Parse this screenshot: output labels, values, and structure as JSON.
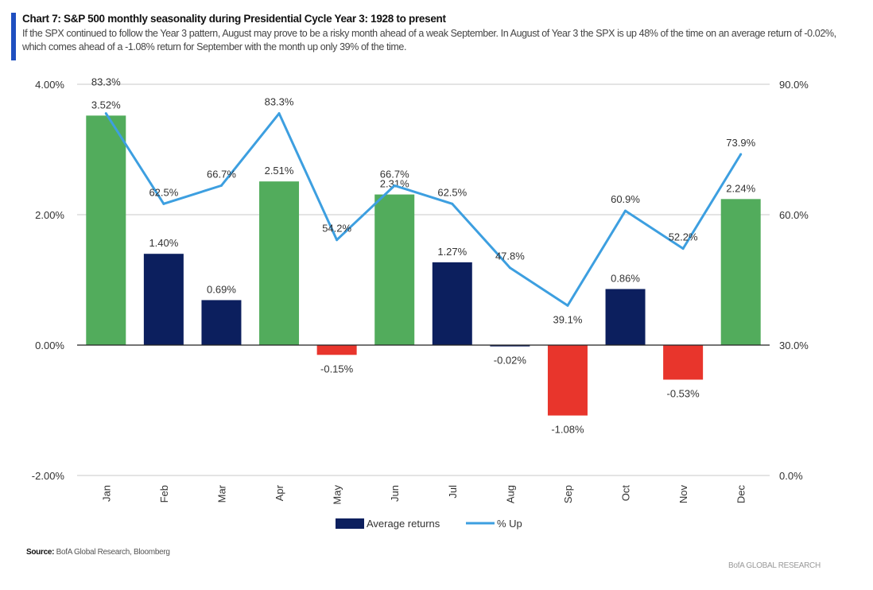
{
  "header": {
    "title": "Chart 7: S&P 500 monthly seasonality during Presidential Cycle Year 3: 1928 to present",
    "subtitle": "If the SPX continued to follow the Year 3 pattern, August may prove to be a risky month ahead of a weak September. In August of Year 3 the SPX is up 48% of the time on an average return of -0.02%, which comes ahead of a -1.08% return for September with the month up only 39% of the time."
  },
  "footer": {
    "source_label": "Source:",
    "source_text": "BofA Global Research, Bloomberg",
    "brand": "BofA GLOBAL RESEARCH"
  },
  "colors": {
    "green": "#52ac5c",
    "navy": "#0c1f5e",
    "red": "#e8352c",
    "line": "#3d9fe0",
    "grid": "#c8c8c8"
  },
  "chart_data": {
    "type": "bar+line",
    "categories": [
      "Jan",
      "Feb",
      "Mar",
      "Apr",
      "May",
      "Jun",
      "Jul",
      "Aug",
      "Sep",
      "Oct",
      "Nov",
      "Dec"
    ],
    "series": [
      {
        "name": "Average returns",
        "type": "bar",
        "axis": "left",
        "values": [
          3.52,
          1.4,
          0.69,
          2.51,
          -0.15,
          2.31,
          1.27,
          -0.02,
          -1.08,
          0.86,
          -0.53,
          2.24
        ],
        "labels": [
          "3.52%",
          "1.40%",
          "0.69%",
          "2.51%",
          "-0.15%",
          "2.31%",
          "1.27%",
          "-0.02%",
          "-1.08%",
          "0.86%",
          "-0.53%",
          "2.24%"
        ],
        "bar_colors": [
          "green",
          "navy",
          "navy",
          "green",
          "red",
          "green",
          "navy",
          "navy",
          "red",
          "navy",
          "red",
          "green"
        ]
      },
      {
        "name": "% Up",
        "type": "line",
        "axis": "right",
        "values": [
          83.3,
          62.5,
          66.7,
          83.3,
          54.2,
          66.7,
          62.5,
          47.8,
          39.1,
          60.9,
          52.2,
          73.9
        ],
        "labels": [
          "83.3%",
          "62.5%",
          "66.7%",
          "83.3%",
          "54.2%",
          "66.7%",
          "62.5%",
          "47.8%",
          "39.1%",
          "60.9%",
          "52.2%",
          "73.9%"
        ]
      }
    ],
    "left_axis": {
      "ylim": [
        -2,
        4
      ],
      "ticks": [
        -2,
        0,
        2,
        4
      ],
      "tick_labels": [
        "-2.00%",
        "0.00%",
        "2.00%",
        "4.00%"
      ]
    },
    "right_axis": {
      "ylim": [
        0,
        90
      ],
      "ticks": [
        0,
        30,
        60,
        90
      ],
      "tick_labels": [
        "0.0%",
        "30.0%",
        "60.0%",
        "90.0%"
      ]
    },
    "grid": true,
    "legend": {
      "placement": "bottom",
      "entries": [
        "Average returns",
        "% Up"
      ]
    }
  }
}
